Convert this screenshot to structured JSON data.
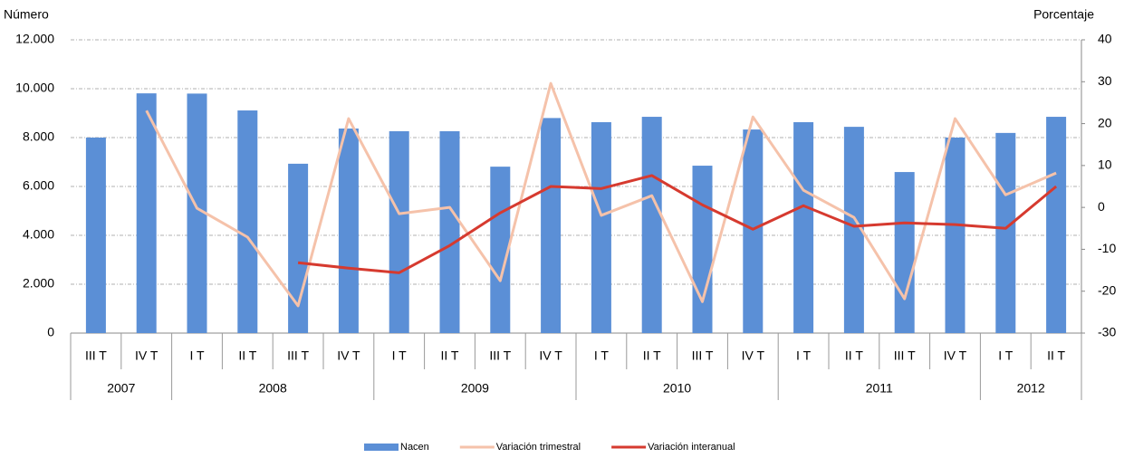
{
  "chart_data": {
    "type": "bar",
    "y_label": "Número",
    "y2_label": "Porcentaje",
    "categories": [
      "III T",
      "IV T",
      "I T",
      "II T",
      "III T",
      "IV T",
      "I T",
      "II T",
      "III T",
      "IV T",
      "I T",
      "II T",
      "III T",
      "IV T",
      "I T",
      "II T",
      "III T",
      "IV T",
      "I T",
      "II T"
    ],
    "year_groups": [
      {
        "label": "2007",
        "count": 2
      },
      {
        "label": "2008",
        "count": 4
      },
      {
        "label": "2009",
        "count": 4
      },
      {
        "label": "2010",
        "count": 4
      },
      {
        "label": "2011",
        "count": 4
      },
      {
        "label": "2012",
        "count": 2
      }
    ],
    "series": [
      {
        "name": "Nacen",
        "type": "bar",
        "color": "#5b8fd6",
        "values": [
          8000,
          9810,
          9800,
          9110,
          6930,
          8370,
          8260,
          8260,
          6810,
          8800,
          8630,
          8850,
          6850,
          8330,
          8630,
          8440,
          6590,
          8000,
          8190,
          8850
        ]
      },
      {
        "name": "Variación trimestral",
        "type": "line",
        "axis": "y2",
        "color": "#f5c2aa",
        "values": [
          null,
          23.1,
          -0.2,
          -7.1,
          -23.5,
          21.2,
          -1.5,
          0,
          -17.5,
          29.6,
          -1.9,
          2.8,
          -22.5,
          21.6,
          4.1,
          -2.4,
          -21.8,
          21.2,
          3.0,
          8.2
        ]
      },
      {
        "name": "Variación interanual",
        "type": "line",
        "axis": "y2",
        "color": "#d63a2f",
        "values": [
          null,
          null,
          null,
          null,
          -13.2,
          -14.5,
          -15.6,
          -9.1,
          -1.3,
          5.0,
          4.5,
          7.6,
          0.6,
          -5.2,
          0.4,
          -4.5,
          -3.7,
          -4.1,
          -5.0,
          5.0
        ]
      }
    ],
    "ylim": [
      0,
      12000
    ],
    "yticks": [
      0,
      {
        "value": 2000,
        "label": "2.000"
      },
      {
        "value": 4000,
        "label": "4.000"
      },
      {
        "value": 6000,
        "label": "6.000"
      },
      {
        "value": 8000,
        "label": "8.000"
      },
      {
        "value": 10000,
        "label": "10.000"
      },
      {
        "value": 12000,
        "label": "12.000"
      }
    ],
    "y2lim": [
      -30,
      40
    ],
    "y2ticks": [
      -30,
      -20,
      -10,
      0,
      10,
      20,
      30,
      40
    ],
    "grid": true,
    "legend": "bottom"
  }
}
